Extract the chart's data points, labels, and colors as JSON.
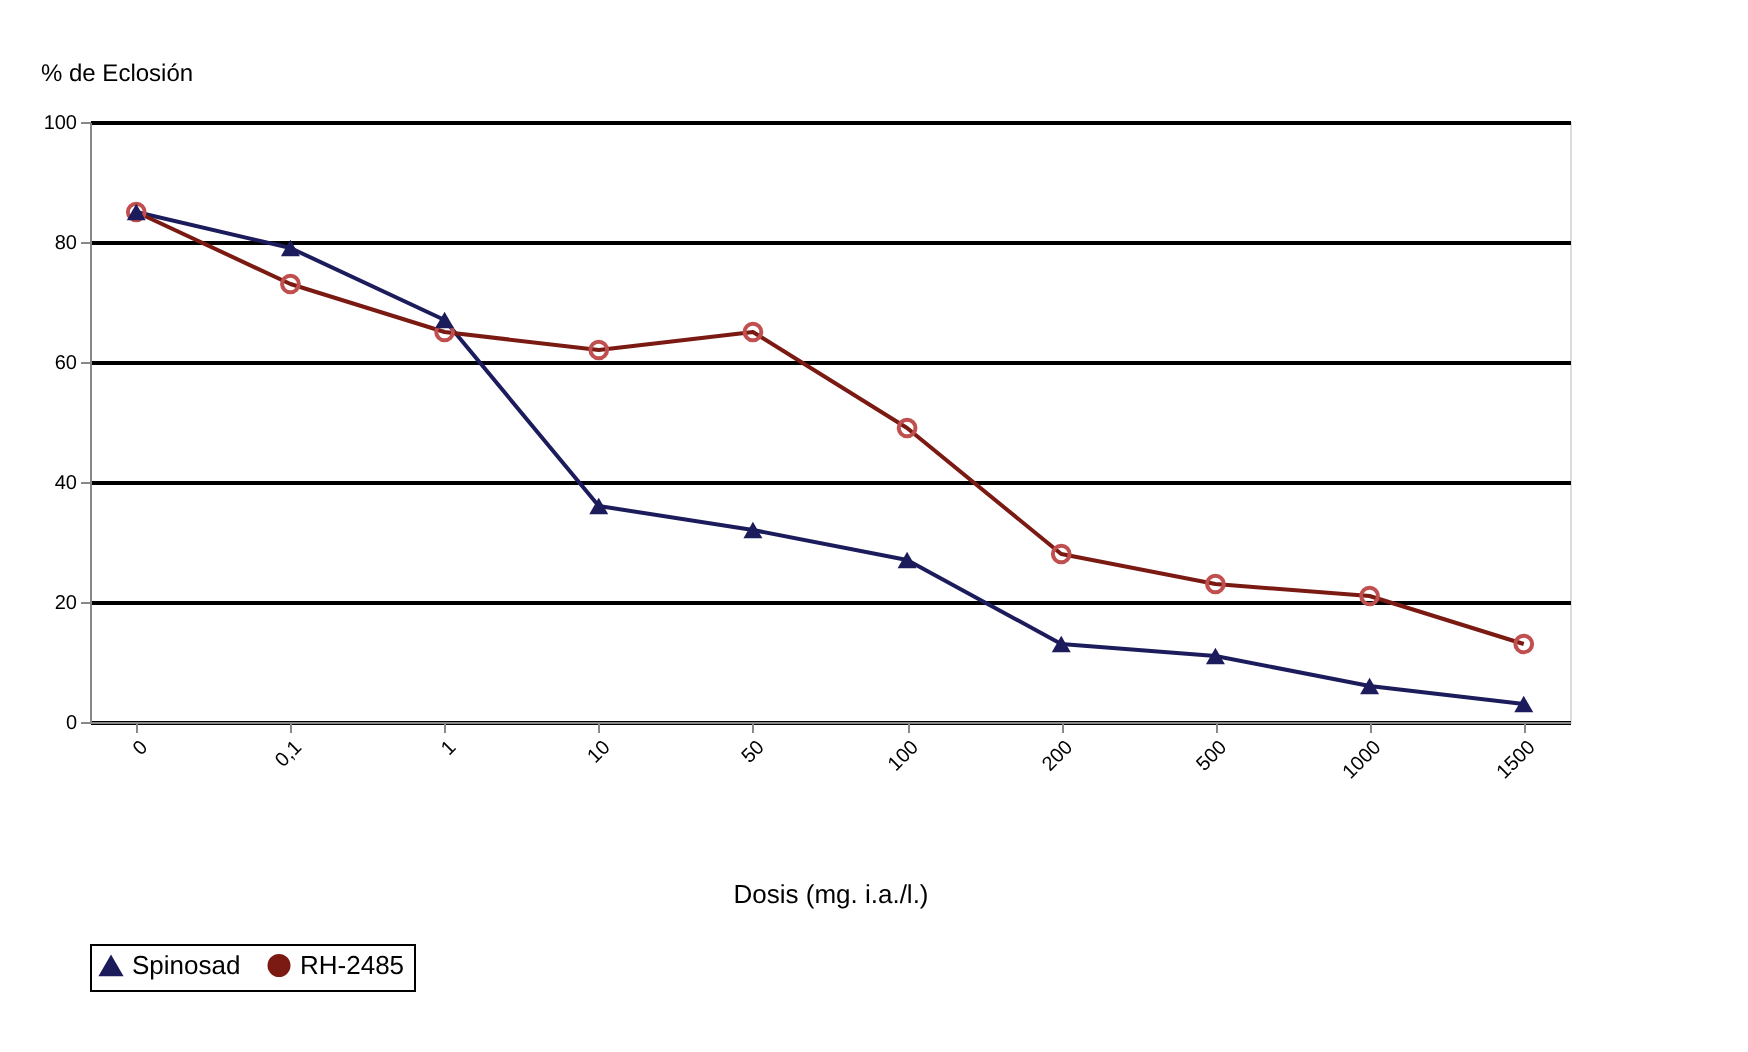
{
  "chart_data": {
    "type": "line",
    "ylabel": "% de Eclosión",
    "xlabel": "Dosis (mg. i.a./l.)",
    "categories": [
      "0",
      "0,1",
      "1",
      "10",
      "50",
      "100",
      "200",
      "500",
      "1000",
      "1500"
    ],
    "series": [
      {
        "name": "Spinosad",
        "color": "#1c1c5c",
        "marker": "triangle",
        "values": [
          85,
          79,
          67,
          36,
          32,
          27,
          13,
          11,
          6,
          3
        ]
      },
      {
        "name": "RH-2485",
        "color": "#7a1a12",
        "marker": "circle",
        "values": [
          85,
          73,
          65,
          62,
          65,
          49,
          28,
          23,
          21,
          13
        ]
      }
    ],
    "ylim": [
      0,
      100
    ],
    "yticks": [
      0,
      20,
      40,
      60,
      80,
      100
    ],
    "grid": "y",
    "legend": "bottom"
  }
}
